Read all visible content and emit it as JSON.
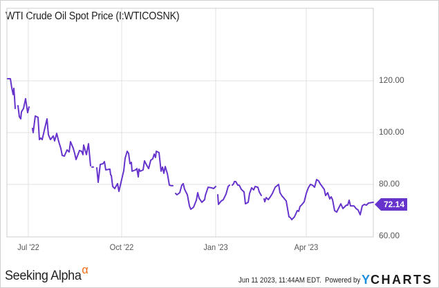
{
  "title": "WTI Crude Oil Spot Price (I:WTICOSNK)",
  "colors": {
    "line": "#6633cc",
    "grid": "#e2e2e2",
    "axis": "#cccccc",
    "badge": "#6633cc",
    "alpha": "#f26a10",
    "ycharts_y": "#1a8fe0"
  },
  "y_axis": {
    "labels": [
      "120.00",
      "100.00",
      "80.00",
      "60.00"
    ]
  },
  "x_axis": {
    "labels": [
      "Jul '22",
      "Oct '22",
      "Jan '23",
      "Apr '23"
    ]
  },
  "last_value": "72.14",
  "footer": {
    "brand": "Seeking Alpha",
    "brand_symbol": "α",
    "timestamp": "Jun 11 2023, 11:44AM EDT.",
    "powered_by": "Powered by",
    "ycharts_y": "Y",
    "ycharts_rest": "CHARTS"
  },
  "chart_data": {
    "type": "line",
    "title": "WTI Crude Oil Spot Price (I:WTICOSNK)",
    "xlabel": "",
    "ylabel": "",
    "ylim": [
      60,
      140
    ],
    "grid": true,
    "y_ticks": [
      60,
      80,
      100,
      120
    ],
    "x_ticks": [
      "Jul '22",
      "Oct '22",
      "Jan '23",
      "Apr '23"
    ],
    "legend": "none",
    "last_value_label": 72.14,
    "series": [
      {
        "name": "WTI Crude Oil Spot Price",
        "approx_range": "Jun 2022 – Jun 2023",
        "segments": [
          [
            [
              11,
              120.8
            ],
            [
              15,
              120.8
            ],
            [
              17,
              117.3
            ],
            [
              19,
              114.7
            ],
            [
              20,
              117.1
            ],
            [
              21,
              113.6
            ],
            [
              22,
              109.3
            ]
          ],
          [
            [
              26,
              110.4
            ],
            [
              28,
              106.1
            ],
            [
              30,
              105.3
            ],
            [
              31,
              108.0
            ],
            [
              34,
              109.3
            ],
            [
              37,
              113.1
            ],
            [
              38,
              111.2
            ],
            [
              40,
              107.7
            ],
            [
              42,
              109.9
            ]
          ],
          [
            [
              47,
              101.6
            ],
            [
              48,
              100.0
            ],
            [
              51,
              106.4
            ],
            [
              55,
              105.9
            ],
            [
              57,
              97.3
            ],
            [
              59,
              97.9
            ],
            [
              61,
              97.3
            ],
            [
              65,
              101.9
            ],
            [
              68,
              105.3
            ],
            [
              70,
              99.2
            ],
            [
              73,
              97.3
            ],
            [
              77,
              98.7
            ],
            [
              79,
              96.8
            ],
            [
              82,
              99.7
            ],
            [
              85,
              96.5
            ],
            [
              88,
              93.9
            ],
            [
              90,
              91.2
            ],
            [
              93,
              90.9
            ],
            [
              97,
              93.3
            ],
            [
              100,
              92.5
            ],
            [
              102,
              96.5
            ],
            [
              106,
              93.9
            ],
            [
              108,
              92.0
            ],
            [
              110,
              89.6
            ],
            [
              115,
              93.1
            ],
            [
              118,
              92.8
            ],
            [
              120,
              91.5
            ],
            [
              121,
              95.2
            ],
            [
              125,
              91.5
            ],
            [
              128,
              95.7
            ],
            [
              131,
              87.2
            ]
          ],
          [
            [
              133,
              86.7
            ],
            [
              135,
              86.7
            ]
          ],
          [
            [
              140,
              86.4
            ],
            [
              142,
              80.8
            ],
            [
              145,
              87.7
            ],
            [
              149,
              88.0
            ],
            [
              151,
              88.8
            ],
            [
              153,
              85.6
            ],
            [
              159,
              85.9
            ],
            [
              160,
              83.7
            ],
            [
              161,
              83.5
            ],
            [
              163,
              79.2
            ],
            [
              166,
              78.4
            ],
            [
              170,
              80.3
            ],
            [
              172,
              77.3
            ],
            [
              176,
              81.9
            ],
            [
              179,
              85.3
            ],
            [
              181,
              90.1
            ],
            [
              184,
              92.8
            ],
            [
              186,
              92.0
            ],
            [
              188,
              88.0
            ],
            [
              190,
              88.5
            ],
            [
              191,
              85.1
            ],
            [
              196,
              85.6
            ],
            [
              198,
              86.1
            ],
            [
              200,
              82.9
            ],
            [
              201,
              85.9
            ],
            [
              203,
              85.1
            ],
            [
              207,
              85.6
            ],
            [
              209,
              89.1
            ],
            [
              211,
              88.0
            ],
            [
              215,
              86.1
            ],
            [
              218,
              89.3
            ],
            [
              221,
              89.9
            ],
            [
              223,
              91.7
            ],
            [
              225,
              90.4
            ],
            [
              226,
              92.8
            ],
            [
              230,
              92.3
            ],
            [
              233,
              85.1
            ],
            [
              235,
              86.7
            ],
            [
              237,
              84.3
            ],
            [
              239,
              86.9
            ],
            [
              241,
              85.1
            ],
            [
              242,
              84.3
            ],
            [
              245,
              79.7
            ],
            [
              248,
              79.5
            ],
            [
              250,
              79.5
            ]
          ],
          [
            [
              254,
              76.5
            ],
            [
              256,
              76.0
            ],
            [
              260,
              76.8
            ],
            [
              263,
              79.7
            ],
            [
              265,
              80.3
            ],
            [
              267,
              78.1
            ],
            [
              271,
              76.0
            ],
            [
              274,
              71.7
            ],
            [
              276,
              70.4
            ],
            [
              280,
              71.2
            ],
            [
              284,
              73.9
            ],
            [
              286,
              76.8
            ],
            [
              288,
              74.7
            ],
            [
              292,
              73.1
            ],
            [
              296,
              74.1
            ],
            [
              297,
              75.7
            ],
            [
              301,
              78.9
            ],
            [
              306,
              78.7
            ],
            [
              309,
              78.4
            ],
            [
              312,
              79.2
            ]
          ],
          [
            [
              315,
              76.0
            ],
            [
              316,
              72.3
            ],
            [
              320,
              73.6
            ],
            [
              323,
              74.1
            ],
            [
              327,
              76.3
            ],
            [
              330,
              79.2
            ],
            [
              332,
              79.7
            ]
          ],
          [
            [
              336,
              79.7
            ],
            [
              338,
              80.3
            ],
            [
              339,
              81.1
            ],
            [
              341,
              81.1
            ],
            [
              344,
              79.7
            ],
            [
              346,
              79.7
            ],
            [
              349,
              78.1
            ],
            [
              353,
              77.1
            ],
            [
              355,
              72.5
            ],
            [
              359,
              73.1
            ],
            [
              361,
              76.5
            ],
            [
              364,
              78.7
            ],
            [
              367,
              77.9
            ],
            [
              369,
              79.2
            ],
            [
              373,
              78.9
            ],
            [
              375,
              77.1
            ],
            [
              378,
              75.7
            ]
          ],
          [
            [
              382,
              74.4
            ],
            [
              383,
              73.3
            ],
            [
              385,
              74.9
            ],
            [
              388,
              74.1
            ],
            [
              391,
              75.2
            ],
            [
              394,
              76.5
            ],
            [
              398,
              78.9
            ],
            [
              403,
              80.0
            ],
            [
              405,
              76.8
            ],
            [
              408,
              75.5
            ],
            [
              410,
              74.9
            ],
            [
              414,
              73.6
            ],
            [
              418,
              67.5
            ],
            [
              420,
              67.2
            ],
            [
              422,
              66.4
            ],
            [
              426,
              67.5
            ],
            [
              430,
              69.9
            ],
            [
              432,
              69.6
            ],
            [
              434,
              71.5
            ],
            [
              437,
              72.3
            ],
            [
              440,
              73.3
            ],
            [
              443,
              76.5
            ],
            [
              446,
              78.7
            ],
            [
              449,
              80.0
            ],
            [
              452,
              79.7
            ],
            [
              455,
              78.9
            ],
            [
              458,
              81.9
            ],
            [
              461,
              81.3
            ],
            [
              463,
              80.3
            ],
            [
              466,
              79.2
            ],
            [
              469,
              78.1
            ],
            [
              471,
              75.7
            ],
            [
              474,
              76.8
            ],
            [
              477,
              74.4
            ],
            [
              479,
              75.2
            ],
            [
              481,
              74.1
            ],
            [
              484,
              69.9
            ],
            [
              487,
              69.3
            ],
            [
              490,
              70.9
            ],
            [
              493,
              72.5
            ],
            [
              496,
              70.7
            ],
            [
              498,
              71.2
            ],
            [
              501,
              72.0
            ],
            [
              503,
              72.0
            ],
            [
              505,
              73.9
            ],
            [
              507,
              71.7
            ],
            [
              512,
              71.7
            ],
            [
              515,
              70.7
            ],
            [
              518,
              70.1
            ],
            [
              521,
              68.3
            ],
            [
              524,
              71.7
            ],
            [
              527,
              72.3
            ],
            [
              530,
              72.0
            ],
            [
              533,
              72.8
            ],
            [
              540,
              73.1
            ]
          ]
        ]
      }
    ]
  }
}
